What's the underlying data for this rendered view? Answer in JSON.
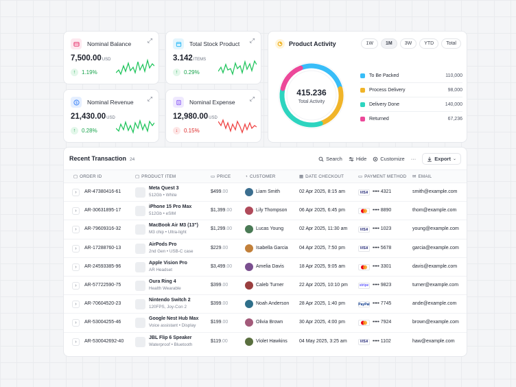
{
  "stats": [
    {
      "title": "Nominal Balance",
      "value": "7,500.00",
      "unit": "USD",
      "change": "1.19%",
      "trend": "up",
      "icon": "wallet-icon",
      "icon_color": "#e9457a",
      "icon_bg": "#fde8ef",
      "spark_color": "#22c55e"
    },
    {
      "title": "Total Stock Product",
      "value": "3.142",
      "unit": "ITEMS",
      "change": "0.29%",
      "trend": "up",
      "icon": "box-icon",
      "icon_color": "#38bdf8",
      "icon_bg": "#e3f5fd",
      "spark_color": "#22c55e"
    },
    {
      "title": "Nominal Revenue",
      "value": "21,430.00",
      "unit": "USD",
      "change": "0.28%",
      "trend": "up",
      "icon": "dollar-icon",
      "icon_color": "#3b82f6",
      "icon_bg": "#e5efff",
      "spark_color": "#22c55e"
    },
    {
      "title": "Nominal Expense",
      "value": "12,980.00",
      "unit": "USD",
      "change": "0.15%",
      "trend": "down",
      "icon": "receipt-icon",
      "icon_color": "#8b5cf6",
      "icon_bg": "#efe9fe",
      "spark_color": "#ef4444"
    }
  ],
  "activity": {
    "title": "Product Activity",
    "periods": [
      "1W",
      "1M",
      "3W",
      "YTD",
      "Total"
    ],
    "active_period": "1M",
    "total": "415.236",
    "total_label": "Total Activity",
    "items": [
      {
        "label": "To Be Packed",
        "value": "110,000",
        "color": "#38bdf8"
      },
      {
        "label": "Process Delivery",
        "value": "98,000",
        "color": "#f0b429"
      },
      {
        "label": "Delivery Done",
        "value": "140,000",
        "color": "#2dd4bf"
      },
      {
        "label": "Returned",
        "value": "67,236",
        "color": "#ec4899"
      }
    ]
  },
  "transactions": {
    "title": "Recent Transaction",
    "count": "24",
    "tools": {
      "search": "Search",
      "hide": "Hide",
      "customize": "Customize",
      "more": "···",
      "export": "Export"
    },
    "columns": {
      "order": "ORDER ID",
      "product": "PRODUCT ITEM",
      "price": "PRICE",
      "customer": "CUSTOMER",
      "date": "DATE CHECKOUT",
      "payment": "PAYMENT METHOD",
      "email": "EMAIL"
    },
    "rows": [
      {
        "order": "AR-47380416-61",
        "product": "Meta Quest 3",
        "sub": "512Gb • White",
        "price": "$499",
        "cents": ".00",
        "customer": "Liam Smith",
        "date": "02 Apr 2025, 8:15 am",
        "card": "VISA",
        "card_type": "visa",
        "last4": "•••• 4321",
        "email": "smith@example.com",
        "avatar": "#3b6e8f"
      },
      {
        "order": "AR-30631895-17",
        "product": "iPhone 15 Pro Max",
        "sub": "512Gb • eSIM",
        "price": "$1,399",
        "cents": ".00",
        "customer": "Lily Thompson",
        "date": "06 Apr 2025, 6:45 pm",
        "card": "MC",
        "card_type": "mc",
        "last4": "•••• 8890",
        "email": "thom@example.com",
        "avatar": "#b04a5a"
      },
      {
        "order": "AR-79609316-32",
        "product": "MacBook Air M3 (13\")",
        "sub": "M3 chip • Ultra-light",
        "price": "$1,299",
        "cents": ".00",
        "customer": "Lucas Young",
        "date": "02 Apr 2025, 11:30 am",
        "card": "VISA",
        "card_type": "visa",
        "last4": "•••• 1023",
        "email": "young@example.com",
        "avatar": "#4a7a55"
      },
      {
        "order": "AR-17288760-13",
        "product": "AirPods Pro",
        "sub": "2nd Gen • USB-C case",
        "price": "$229",
        "cents": ".00",
        "customer": "Isabella Garcia",
        "date": "04 Apr 2025, 7:50 pm",
        "card": "VISA",
        "card_type": "visa",
        "last4": "•••• 5678",
        "email": "garcia@example.com",
        "avatar": "#c2803a"
      },
      {
        "order": "AR-24593385-96",
        "product": "Apple Vision Pro",
        "sub": "AR Headset",
        "price": "$3,499",
        "cents": ".00",
        "customer": "Amelia Davis",
        "date": "18 Apr 2025, 9:05 am",
        "card": "MC",
        "card_type": "mc",
        "last4": "•••• 3301",
        "email": "davis@example.com",
        "avatar": "#7a4f8f"
      },
      {
        "order": "AR-57722590-75",
        "product": "Oura Ring 4",
        "sub": "Health Wearable",
        "price": "$399",
        "cents": ".00",
        "customer": "Caleb Turner",
        "date": "22 Apr 2025, 10:10 pm",
        "card": "stripe",
        "card_type": "stripe",
        "last4": "•••• 9823",
        "email": "turner@example.com",
        "avatar": "#9a3f3f"
      },
      {
        "order": "AR-70604520-23",
        "product": "Nintendo Switch 2",
        "sub": "120FPS, Joy-Con 2",
        "price": "$399",
        "cents": ".00",
        "customer": "Noah Anderson",
        "date": "28 Apr 2025, 1:40 pm",
        "card": "PayPal",
        "card_type": "paypal",
        "last4": "•••• 7745",
        "email": "ande@example.com",
        "avatar": "#2f6f8a"
      },
      {
        "order": "AR-53004255-46",
        "product": "Google Nest Hub Max",
        "sub": "Voice assistant • Display",
        "price": "$199",
        "cents": ".00",
        "customer": "Olivia Brown",
        "date": "30 Apr 2025, 4:00 pm",
        "card": "MC",
        "card_type": "mc",
        "last4": "•••• 7924",
        "email": "brown@example.com",
        "avatar": "#a35a7a"
      },
      {
        "order": "AR-530042692-40",
        "product": "JBL Flip 6 Speaker",
        "sub": "Waterproof • Bluetooth",
        "price": "$119",
        "cents": ".00",
        "customer": "Violet Hawkins",
        "date": "04 May 2025, 3:25 am",
        "card": "VISA",
        "card_type": "visa",
        "last4": "•••• 1102",
        "email": "haw@example.com",
        "avatar": "#5a6f3f"
      }
    ]
  }
}
